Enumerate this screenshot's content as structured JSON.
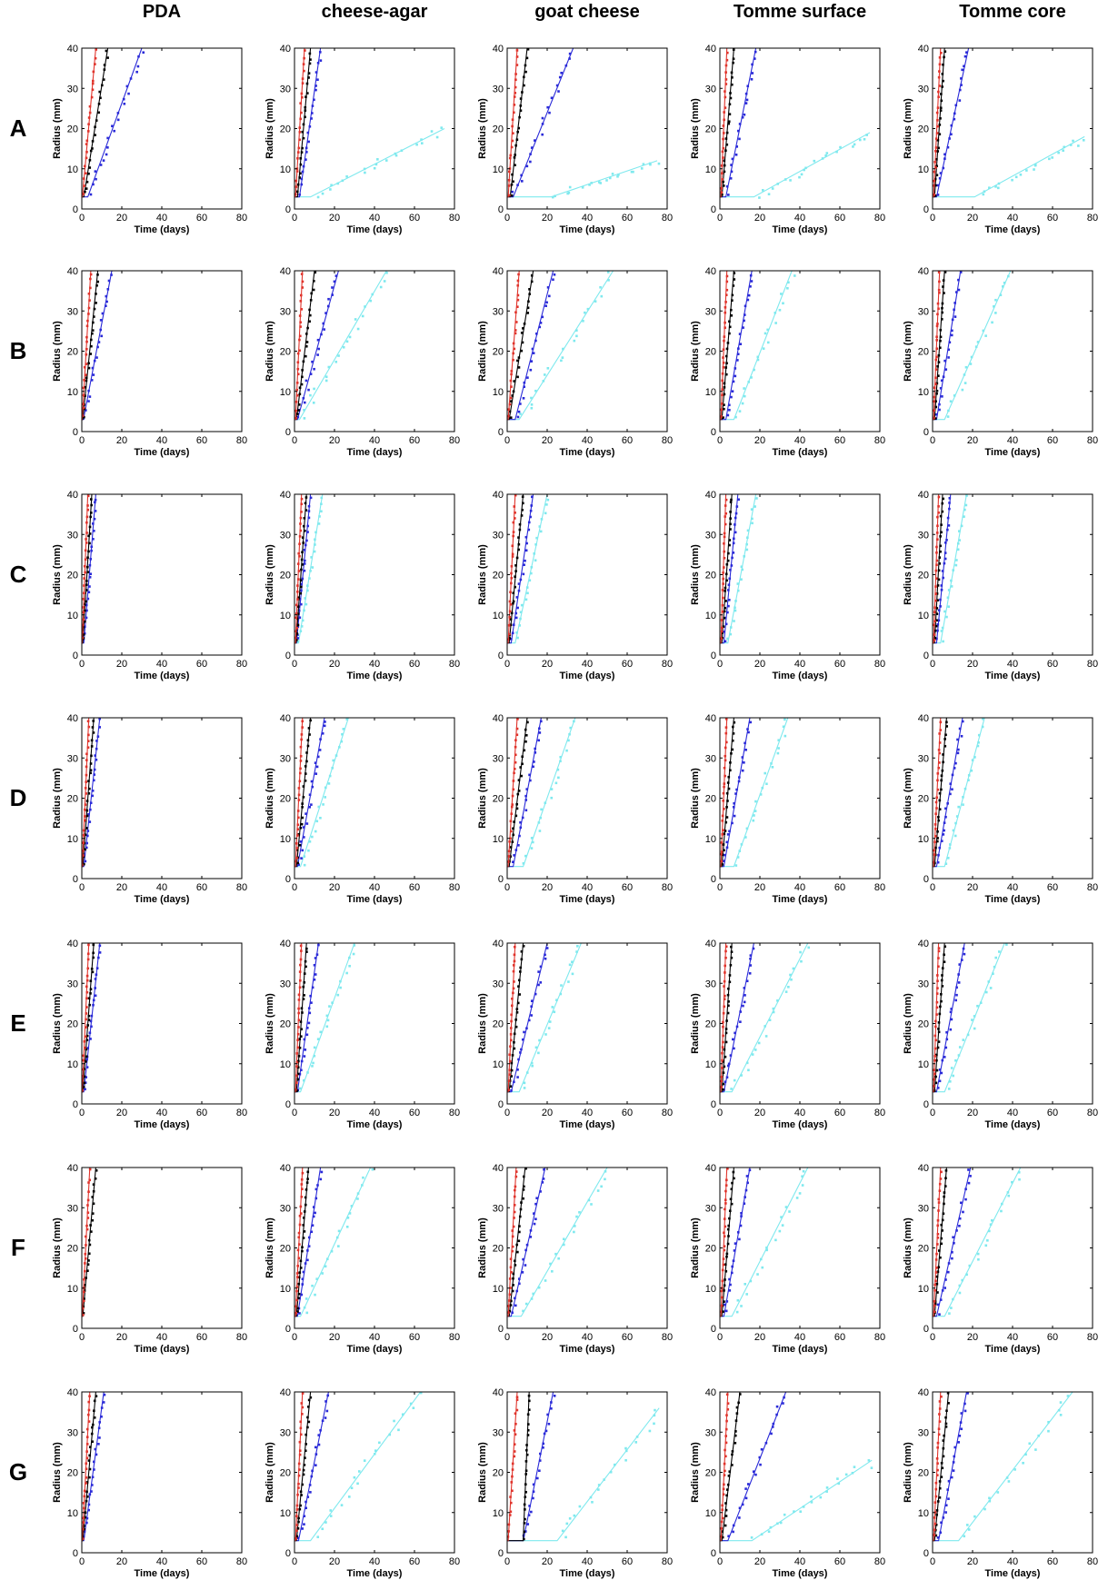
{
  "columns": [
    "PDA",
    "cheese-agar",
    "goat cheese",
    "Tomme surface",
    "Tomme core"
  ],
  "rows": [
    "A",
    "B",
    "C",
    "D",
    "E",
    "F",
    "G"
  ],
  "colors": {
    "red": "#e0342c",
    "black": "#000000",
    "blue": "#2a2ad8",
    "cyan": "#7fe9ee"
  },
  "chart_data": {
    "type": "scatter",
    "xlabel": "Time (days)",
    "ylabel": "Radius (mm)",
    "xlim": [
      0,
      80
    ],
    "ylim": [
      0,
      40
    ],
    "xticks": [
      0,
      20,
      40,
      60,
      80
    ],
    "yticks": [
      0,
      10,
      20,
      30,
      40
    ],
    "series_colors": [
      "red",
      "black",
      "blue",
      "cyan"
    ],
    "panels": [
      {
        "row": "A",
        "column": "PDA",
        "fits": {
          "red": [
            0.3,
            7.0
          ],
          "black": [
            1.0,
            13.0
          ],
          "blue": [
            3.0,
            30.0
          ]
        }
      },
      {
        "row": "A",
        "column": "cheese-agar",
        "fits": {
          "red": [
            0.5,
            5.0
          ],
          "black": [
            1.5,
            8.0
          ],
          "blue": [
            2.5,
            13.0
          ],
          "cyan": [
            8.0,
            75.0,
            20
          ]
        }
      },
      {
        "row": "A",
        "column": "goat cheese",
        "fits": {
          "red": [
            0.5,
            5.0
          ],
          "black": [
            1.5,
            10.0
          ],
          "blue": [
            3.0,
            33.0
          ],
          "cyan": [
            22.0,
            75.0,
            12
          ]
        }
      },
      {
        "row": "A",
        "column": "Tomme surface",
        "fits": {
          "red": [
            0.5,
            3.5
          ],
          "black": [
            1.0,
            7.0
          ],
          "blue": [
            3.0,
            18.0
          ],
          "cyan": [
            17.0,
            75.0,
            19
          ]
        }
      },
      {
        "row": "A",
        "column": "Tomme core",
        "fits": {
          "red": [
            0.5,
            4.0
          ],
          "black": [
            1.0,
            6.0
          ],
          "blue": [
            2.0,
            18.0
          ],
          "cyan": [
            21.0,
            76.0,
            18
          ]
        }
      },
      {
        "row": "B",
        "column": "PDA",
        "fits": {
          "red": [
            0.2,
            4.5
          ],
          "black": [
            0.5,
            8.0
          ],
          "blue": [
            0.8,
            15.0
          ]
        }
      },
      {
        "row": "B",
        "column": "cheese-agar",
        "fits": {
          "red": [
            0.5,
            4.0
          ],
          "black": [
            1.0,
            10.0
          ],
          "blue": [
            1.5,
            22.0
          ],
          "cyan": [
            2.5,
            46.0
          ]
        }
      },
      {
        "row": "B",
        "column": "goat cheese",
        "fits": {
          "red": [
            0.5,
            6.0
          ],
          "black": [
            1.0,
            13.0
          ],
          "blue": [
            4.0,
            23.0
          ],
          "cyan": [
            6.0,
            53.0
          ]
        }
      },
      {
        "row": "B",
        "column": "Tomme surface",
        "fits": {
          "red": [
            0.5,
            3.5
          ],
          "black": [
            1.0,
            7.0
          ],
          "blue": [
            3.0,
            16.0
          ],
          "cyan": [
            7.0,
            36.0
          ]
        }
      },
      {
        "row": "B",
        "column": "Tomme core",
        "fits": {
          "red": [
            0.5,
            3.5
          ],
          "black": [
            1.0,
            6.0
          ],
          "blue": [
            2.0,
            14.0
          ],
          "cyan": [
            6.0,
            39.0
          ]
        }
      },
      {
        "row": "C",
        "column": "PDA",
        "fits": {
          "red": [
            0.2,
            3.0
          ],
          "black": [
            0.5,
            5.0
          ],
          "blue": [
            1.0,
            7.0
          ]
        }
      },
      {
        "row": "C",
        "column": "cheese-agar",
        "fits": {
          "red": [
            0.5,
            3.5
          ],
          "black": [
            0.8,
            6.0
          ],
          "blue": [
            1.0,
            8.0
          ],
          "cyan": [
            2.0,
            14.0
          ]
        }
      },
      {
        "row": "C",
        "column": "goat cheese",
        "fits": {
          "red": [
            0.5,
            4.0
          ],
          "black": [
            1.0,
            8.0
          ],
          "blue": [
            2.0,
            13.0
          ],
          "cyan": [
            4.0,
            20.0
          ]
        }
      },
      {
        "row": "C",
        "column": "Tomme surface",
        "fits": {
          "red": [
            0.5,
            3.0
          ],
          "black": [
            1.0,
            6.0
          ],
          "blue": [
            2.0,
            9.0
          ],
          "cyan": [
            4.0,
            18.0
          ]
        }
      },
      {
        "row": "C",
        "column": "Tomme core",
        "fits": {
          "red": [
            0.5,
            3.0
          ],
          "black": [
            1.0,
            5.0
          ],
          "blue": [
            2.0,
            9.0
          ],
          "cyan": [
            4.0,
            17.0
          ]
        }
      },
      {
        "row": "D",
        "column": "PDA",
        "fits": {
          "red": [
            0.2,
            3.5
          ],
          "black": [
            0.5,
            6.0
          ],
          "blue": [
            1.0,
            9.0
          ]
        }
      },
      {
        "row": "D",
        "column": "cheese-agar",
        "fits": {
          "red": [
            0.5,
            4.0
          ],
          "black": [
            1.0,
            8.0
          ],
          "blue": [
            1.5,
            15.0
          ],
          "cyan": [
            3.0,
            27.0
          ]
        }
      },
      {
        "row": "D",
        "column": "goat cheese",
        "fits": {
          "red": [
            0.5,
            5.0
          ],
          "black": [
            1.0,
            10.0
          ],
          "blue": [
            3.0,
            17.0
          ],
          "cyan": [
            8.0,
            34.0
          ]
        }
      },
      {
        "row": "D",
        "column": "Tomme surface",
        "fits": {
          "red": [
            0.5,
            3.5
          ],
          "black": [
            1.0,
            7.0
          ],
          "blue": [
            2.0,
            15.0
          ],
          "cyan": [
            7.0,
            34.0
          ]
        }
      },
      {
        "row": "D",
        "column": "Tomme core",
        "fits": {
          "red": [
            0.5,
            4.0
          ],
          "black": [
            1.0,
            7.0
          ],
          "blue": [
            2.0,
            15.0
          ],
          "cyan": [
            6.0,
            26.0
          ]
        }
      },
      {
        "row": "E",
        "column": "PDA",
        "fits": {
          "red": [
            0.2,
            3.5
          ],
          "black": [
            0.5,
            6.0
          ],
          "blue": [
            1.0,
            9.0
          ]
        }
      },
      {
        "row": "E",
        "column": "cheese-agar",
        "fits": {
          "red": [
            0.5,
            3.5
          ],
          "black": [
            1.0,
            6.0
          ],
          "blue": [
            1.5,
            12.0
          ],
          "cyan": [
            3.0,
            30.0
          ]
        }
      },
      {
        "row": "E",
        "column": "goat cheese",
        "fits": {
          "red": [
            0.5,
            4.0
          ],
          "black": [
            1.0,
            8.0
          ],
          "blue": [
            2.0,
            20.0
          ],
          "cyan": [
            6.0,
            37.0
          ]
        }
      },
      {
        "row": "E",
        "column": "Tomme surface",
        "fits": {
          "red": [
            0.5,
            3.0
          ],
          "black": [
            1.0,
            6.0
          ],
          "blue": [
            2.0,
            17.0
          ],
          "cyan": [
            6.0,
            44.0
          ]
        }
      },
      {
        "row": "E",
        "column": "Tomme core",
        "fits": {
          "red": [
            0.5,
            3.0
          ],
          "black": [
            1.0,
            6.0
          ],
          "blue": [
            2.0,
            16.0
          ],
          "cyan": [
            6.0,
            36.0
          ]
        }
      },
      {
        "row": "F",
        "column": "PDA",
        "fits": {
          "red": [
            0.2,
            4.0
          ],
          "black": [
            0.5,
            7.0
          ]
        }
      },
      {
        "row": "F",
        "column": "cheese-agar",
        "fits": {
          "red": [
            0.5,
            4.0
          ],
          "black": [
            1.0,
            7.0
          ],
          "blue": [
            1.5,
            13.0
          ],
          "cyan": [
            3.0,
            38.0
          ]
        }
      },
      {
        "row": "F",
        "column": "goat cheese",
        "fits": {
          "red": [
            0.5,
            4.5
          ],
          "black": [
            1.0,
            9.0
          ],
          "blue": [
            2.0,
            19.0
          ],
          "cyan": [
            7.0,
            50.0
          ]
        }
      },
      {
        "row": "F",
        "column": "Tomme surface",
        "fits": {
          "red": [
            0.5,
            3.5
          ],
          "black": [
            1.0,
            7.0
          ],
          "blue": [
            2.0,
            15.0
          ],
          "cyan": [
            6.0,
            44.0
          ]
        }
      },
      {
        "row": "F",
        "column": "Tomme core",
        "fits": {
          "red": [
            0.5,
            4.0
          ],
          "black": [
            1.0,
            7.0
          ],
          "blue": [
            2.0,
            19.0
          ],
          "cyan": [
            6.0,
            44.0
          ]
        }
      },
      {
        "row": "G",
        "column": "PDA",
        "fits": {
          "red": [
            0.2,
            4.0
          ],
          "black": [
            0.5,
            7.0
          ],
          "blue": [
            1.0,
            11.0
          ]
        }
      },
      {
        "row": "G",
        "column": "cheese-agar",
        "fits": {
          "red": [
            0.5,
            4.0
          ],
          "black": [
            1.0,
            8.0
          ],
          "blue": [
            2.0,
            17.0
          ],
          "cyan": [
            8.0,
            63.0
          ]
        }
      },
      {
        "row": "G",
        "column": "goat cheese",
        "fits": {
          "red": [
            0.5,
            5.0
          ],
          "black": [
            8.0,
            11.0
          ],
          "blue": [
            8.0,
            23.0
          ],
          "cyan": [
            25.0,
            76.0,
            36
          ]
        }
      },
      {
        "row": "G",
        "column": "Tomme surface",
        "fits": {
          "red": [
            0.5,
            4.0
          ],
          "black": [
            1.0,
            10.0
          ],
          "blue": [
            4.0,
            33.0
          ],
          "cyan": [
            16.0,
            76.0,
            23
          ]
        }
      },
      {
        "row": "G",
        "column": "Tomme core",
        "fits": {
          "red": [
            0.5,
            4.0
          ],
          "black": [
            1.0,
            8.0
          ],
          "blue": [
            3.0,
            17.0
          ],
          "cyan": [
            13.0,
            70.0
          ]
        }
      }
    ]
  }
}
